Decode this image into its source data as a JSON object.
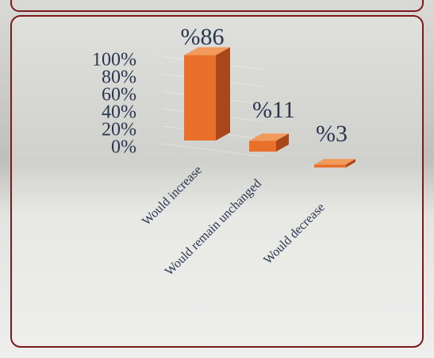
{
  "chart_data": {
    "type": "bar3d",
    "categories": [
      "Would increase",
      "Would remain unchanged",
      "Would decrease"
    ],
    "values": [
      86,
      11,
      3
    ],
    "value_labels": [
      "%86",
      "%11",
      "%3"
    ],
    "color": "#e8702a",
    "ylim": [
      0,
      100
    ],
    "yticks": [
      {
        "value": 0,
        "label": "0%"
      },
      {
        "value": 20,
        "label": "20%"
      },
      {
        "value": 40,
        "label": "40%"
      },
      {
        "value": 60,
        "label": "60%"
      },
      {
        "value": 80,
        "label": "80%"
      },
      {
        "value": 100,
        "label": "100%"
      }
    ],
    "grid": true
  }
}
